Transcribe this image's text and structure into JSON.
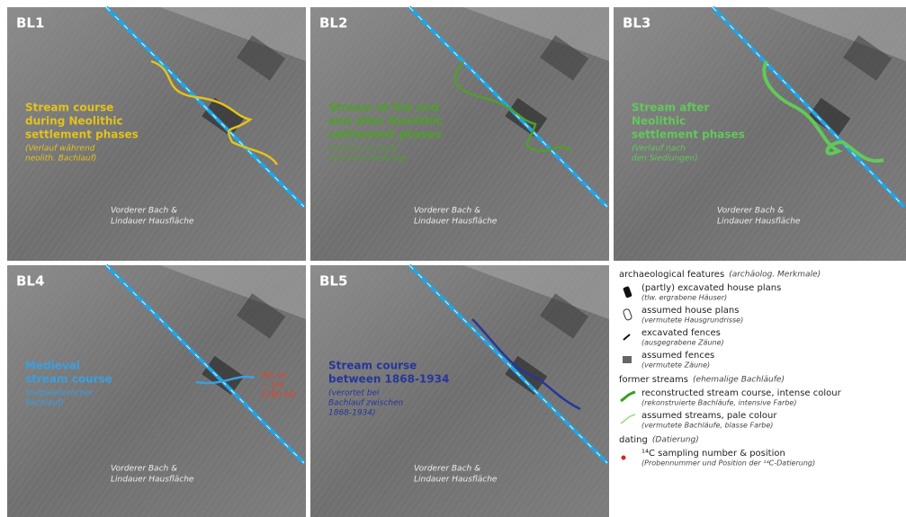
{
  "panels": [
    {
      "label": "BL1",
      "color": "#e3c21c",
      "desc": [
        "Stream course",
        "during Neolithic",
        "settlement phases"
      ],
      "desc_de": [
        "(Verlauf während",
        "neolith. Bachlauf)"
      ],
      "place": [
        "Vorderer Bach &",
        "Lindauer Hausfläche"
      ]
    },
    {
      "label": "BL2",
      "color": "#4f9e2c",
      "desc": [
        "Stream at the end",
        "and after Neolithic",
        "settlement phases"
      ],
      "desc_de": [
        "(Verlauf am Ende",
        "und nach Siedlung)"
      ],
      "place": [
        "Vorderer Bach &",
        "Lindauer Hausfläche"
      ]
    },
    {
      "label": "BL3",
      "color": "#62c85a",
      "desc": [
        "Stream after",
        "Neolithic",
        "settlement phases"
      ],
      "desc_de": [
        "(Verlauf nach",
        "den Siedlungen)"
      ],
      "place": [
        "Vorderer Bach &",
        "Lindauer Hausfläche"
      ]
    },
    {
      "label": "BL4",
      "color": "#3b9fe0",
      "desc": [
        "Medieval",
        "stream course"
      ],
      "desc_de": [
        "(mittelalterlicher",
        "Bachlauf)"
      ],
      "note": [
        "lab no.",
        "~ 1/4",
        "1280 AD"
      ],
      "place": [
        "Vorderer Bach &",
        "Lindauer Hausfläche"
      ]
    },
    {
      "label": "BL5",
      "color": "#26369a",
      "desc": [
        "Stream course",
        "between 1868-1934"
      ],
      "desc_de": [
        "(verortet bei",
        "Bachlauf zwischen",
        "1868-1934)"
      ],
      "place": [
        "Vorderer Bach &",
        "Lindauer Hausfläche"
      ]
    }
  ],
  "legend": [
    {
      "heading": "archaeological features",
      "heading_de": "(archäolog. Merkmale)",
      "items": [
        {
          "label": "(partly) excavated house plans",
          "label_de": "(tlw. ergrabene Häuser)"
        },
        {
          "label": "assumed house plans",
          "label_de": "(vermutete Hausgrundrisse)"
        },
        {
          "label": "excavated fences",
          "label_de": "(ausgegrabene Zäune)"
        },
        {
          "label": "assumed fences",
          "label_de": "(vermutete Zäune)"
        }
      ]
    },
    {
      "heading": "former streams",
      "heading_de": "(ehemalige Bachläufe)",
      "items": [
        {
          "label": "reconstructed stream course, intense colour",
          "label_de": "(rekonstruierte Bachläufe, intensive Farbe)"
        },
        {
          "label": "assumed streams, pale colour",
          "label_de": "(vermutete Bachläufe, blasse Farbe)"
        }
      ]
    },
    {
      "heading": "dating",
      "heading_de": "(Datierung)",
      "items": [
        {
          "label": "¹⁴C sampling number & position",
          "label_de": "(Probennummer und Position der ¹⁴C-Datierung)"
        }
      ]
    }
  ]
}
